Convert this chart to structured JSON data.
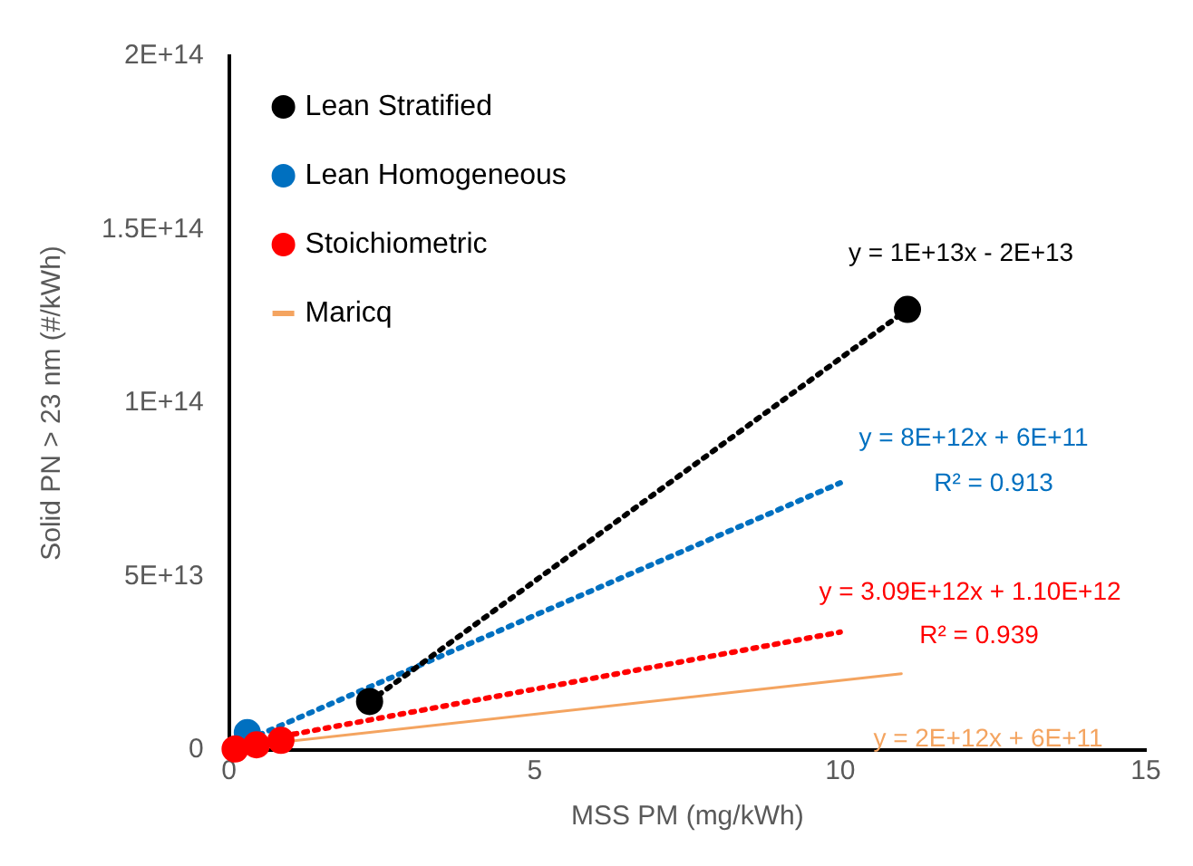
{
  "chart_data": {
    "type": "scatter",
    "xlabel": "MSS PM (mg/kWh)",
    "ylabel": "Solid PN > 23 nm (#/kWh)",
    "xlim": [
      0,
      15
    ],
    "xticks": [
      0,
      5,
      10,
      15
    ],
    "ylim": [
      0,
      200000000000000.0
    ],
    "yticks": [
      0,
      {
        "value": 50000000000000.0,
        "label": "5E+13"
      },
      {
        "value": 100000000000000.0,
        "label": "1E+14"
      },
      {
        "value": 150000000000000.0,
        "label": "1.5E+14"
      },
      {
        "value": 200000000000000.0,
        "label": "2E+14"
      }
    ],
    "grid": false,
    "legend": "top left",
    "series": [
      {
        "name": "Lean Stratified",
        "marker": "circle",
        "color": "#000000",
        "x": [
          2.3,
          11.1
        ],
        "values": [
          14000000000000.0,
          127000000000000.0
        ]
      },
      {
        "name": "Lean Homogeneous",
        "marker": "circle",
        "color": "#0070c0",
        "x": [
          0.3
        ],
        "values": [
          5000000000000.0
        ]
      },
      {
        "name": "Stoichiometric",
        "marker": "circle",
        "color": "#ff0000",
        "x": [
          0.1,
          0.45,
          0.85
        ],
        "values": [
          300000000000.0,
          1500000000000.0,
          2800000000000.0
        ]
      },
      {
        "name": "Maricq",
        "type": "line",
        "marker": "none",
        "line_style": "solid",
        "color": "#f4a460",
        "x": [
          0,
          11
        ],
        "values": [
          600000000000.0,
          22000000000000.0
        ]
      },
      {
        "type": "line",
        "marker": "none",
        "line_style": "dotted",
        "color": "#000000",
        "x": [
          2.3,
          11.1
        ],
        "values": [
          14000000000000.0,
          127000000000000.0
        ]
      },
      {
        "type": "line",
        "marker": "none",
        "line_style": "dotted",
        "color": "#0070c0",
        "x": [
          0,
          10
        ],
        "values": [
          600000000000.0,
          77000000000000.0
        ]
      },
      {
        "type": "line",
        "marker": "none",
        "line_style": "dotted",
        "color": "#ff0000",
        "x": [
          0,
          10
        ],
        "values": [
          1100000000000.0,
          34000000000000.0
        ]
      }
    ],
    "annotations": [
      "y = 1E+13x - 2E+13",
      "y = 8E+12x + 6E+11",
      "R² = 0.913",
      "y = 3.09E+12x + 1.10E+12",
      "R² = 0.939",
      "y = 2E+12x + 6E+11"
    ]
  }
}
